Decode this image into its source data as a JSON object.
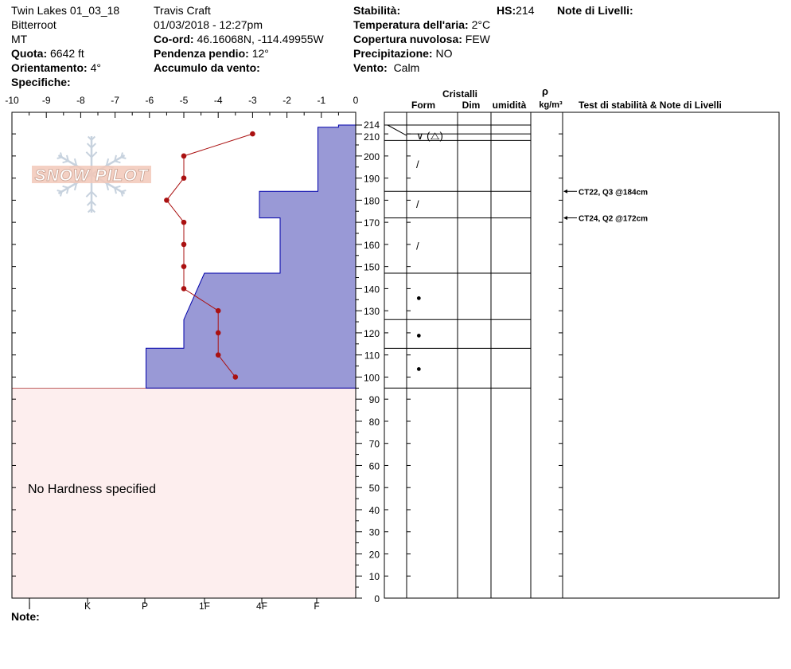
{
  "header": {
    "location": "Twin Lakes 01_03_18",
    "range": "Bitterroot",
    "state": "MT",
    "elevation_label": "Quota:",
    "elevation_value": "6642 ft",
    "aspect_label": "Orientamento:",
    "aspect_value": "4°",
    "specifics_label": "Specifiche:",
    "observer": "Travis  Craft",
    "datetime": "01/03/2018 - 12:27pm",
    "coord_label": "Co-ord:",
    "coord_value": "46.16068N, -114.49955W",
    "slope_label": "Pendenza pendio:",
    "slope_value": "12°",
    "wind_loading_label": "Accumulo da vento:",
    "stability_label": "Stabilità:",
    "air_temp_label": "Temperatura dell'aria:",
    "air_temp_value": "2°C",
    "sky_label": "Copertura nuvolosa:",
    "sky_value": "FEW",
    "precip_label": "Precipitazione:",
    "precip_value": "NO",
    "wind_label": "Vento:",
    "wind_value": "Calm",
    "hs_label": "HS:",
    "hs_value": "214",
    "layer_notes_label": "Note di Livelli:"
  },
  "logo_text": "SNOW PILOT",
  "no_hardness_text": "No Hardness specified",
  "notes_label": "Note:",
  "columns": {
    "crystals": "Cristalli",
    "form": "Form",
    "size": "Dim",
    "moisture": "umidità",
    "rho": "ρ",
    "density_unit": "kg/m³",
    "tests": "Test di stabilità & Note di Livelli"
  },
  "colors": {
    "hardness_fill": "#9999d6",
    "hardness_stroke": "#0000aa",
    "no_hardness_fill": "#fdeeee",
    "temperature": "#aa1111"
  },
  "chart_data": {
    "type": "snow_profile",
    "temperature_axis": {
      "range": [
        -10,
        0
      ],
      "ticks": [
        "-10",
        "-9",
        "-8",
        "-7",
        "-6",
        "-5",
        "-4",
        "-3",
        "-2",
        "-1",
        "0"
      ]
    },
    "hardness_axis": {
      "labels": [
        "I",
        "K",
        "P",
        "1F",
        "4F",
        "F"
      ]
    },
    "depth_axis": {
      "range": [
        0,
        214
      ],
      "ticks": [
        "0",
        "10",
        "20",
        "30",
        "40",
        "50",
        "60",
        "70",
        "80",
        "90",
        "100",
        "110",
        "120",
        "130",
        "140",
        "150",
        "160",
        "170",
        "180",
        "190",
        "200",
        "210",
        "214"
      ]
    },
    "temperature_profile": [
      {
        "depth": 210,
        "temp": -3.0
      },
      {
        "depth": 200,
        "temp": -5.0
      },
      {
        "depth": 190,
        "temp": -5.0
      },
      {
        "depth": 180,
        "temp": -5.5
      },
      {
        "depth": 170,
        "temp": -5.0
      },
      {
        "depth": 160,
        "temp": -5.0
      },
      {
        "depth": 150,
        "temp": -5.0
      },
      {
        "depth": 140,
        "temp": -5.0
      },
      {
        "depth": 130,
        "temp": -4.0
      },
      {
        "depth": 120,
        "temp": -4.0
      },
      {
        "depth": 110,
        "temp": -4.0
      },
      {
        "depth": 100,
        "temp": -3.5
      }
    ],
    "hardness_polygon": [
      [
        0,
        214
      ],
      [
        -0.5,
        214
      ],
      [
        -0.5,
        213
      ],
      [
        -1.1,
        213
      ],
      [
        -1.1,
        184
      ],
      [
        -2.8,
        184
      ],
      [
        -2.8,
        172
      ],
      [
        -2.2,
        172
      ],
      [
        -2.2,
        147
      ],
      [
        -4.4,
        147
      ],
      [
        -5.0,
        126
      ],
      [
        -5.0,
        113
      ],
      [
        -6.1,
        113
      ],
      [
        -6.1,
        95
      ],
      [
        0,
        95
      ]
    ],
    "layer_boundaries": [
      214,
      210,
      207,
      184,
      172,
      147,
      126,
      113,
      95
    ],
    "layers": [
      {
        "depth": 209,
        "form": "∨ (⧍)"
      },
      {
        "depth": 196,
        "form": "/"
      },
      {
        "depth": 178,
        "form": "/"
      },
      {
        "depth": 159,
        "form": "/"
      },
      {
        "depth": 136,
        "form": "●"
      },
      {
        "depth": 119,
        "form": "●"
      },
      {
        "depth": 104,
        "form": "●"
      }
    ],
    "stability_tests": [
      {
        "depth": 184,
        "text": "CT22, Q3 @184cm"
      },
      {
        "depth": 172,
        "text": "CT24, Q2 @172cm"
      }
    ]
  }
}
